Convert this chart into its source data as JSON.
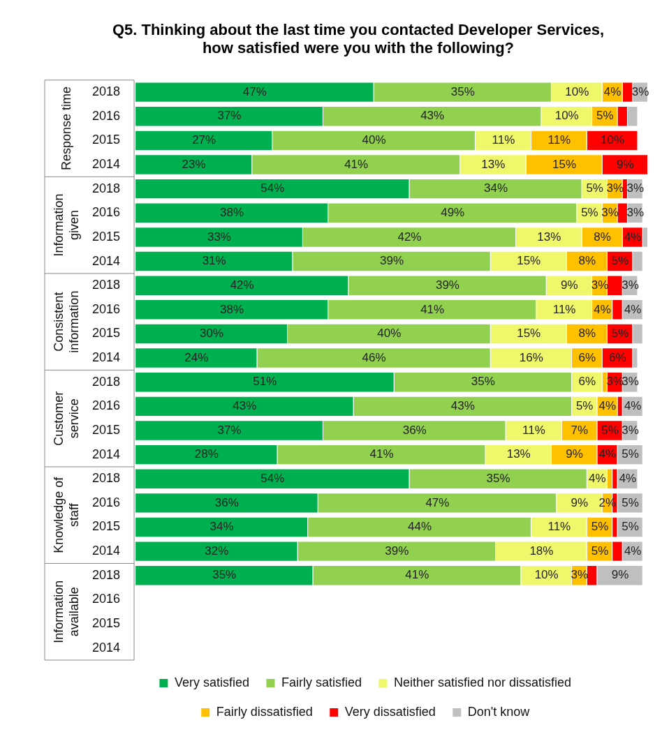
{
  "chart_data": {
    "type": "bar",
    "orientation": "horizontal",
    "stacked": true,
    "legend": "bottom",
    "title": "Q5. Thinking about the last time you contacted Developer Services, how satisfied were you with the following?",
    "categories": [
      "2018",
      "2016",
      "2015",
      "2014",
      "2018",
      "2016",
      "2015",
      "2014",
      "2018",
      "2016",
      "2015",
      "2014",
      "2018",
      "2016",
      "2015",
      "2014",
      "2018",
      "2016",
      "2015",
      "2014",
      "2018",
      "2016",
      "2015",
      "2014"
    ],
    "annotations": [
      "Response time",
      "Information given",
      "Consistent information",
      "Customer service",
      "Knowledge of staff",
      "Information available"
    ],
    "series": [
      {
        "name": "Very satisfied",
        "color": "#00b050",
        "values": [
          47,
          37,
          27,
          23,
          54,
          38,
          33,
          31,
          42,
          38,
          30,
          24,
          51,
          43,
          37,
          28,
          54,
          36,
          34,
          32,
          35,
          null,
          null,
          null
        ],
        "value_labels": [
          "47%",
          "37%",
          "27%",
          "23%",
          "54%",
          "38%",
          "33%",
          "31%",
          "42%",
          "38%",
          "30%",
          "24%",
          "51%",
          "43%",
          "37%",
          "28%",
          "54%",
          "36%",
          "34%",
          "32%",
          "35%",
          null,
          null,
          null
        ]
      },
      {
        "name": "Fairly satisfied",
        "color": "#92d050",
        "values": [
          35,
          43,
          40,
          41,
          34,
          49,
          42,
          39,
          39,
          41,
          40,
          46,
          35,
          43,
          36,
          41,
          35,
          47,
          44,
          39,
          41,
          null,
          null,
          null
        ],
        "value_labels": [
          "35%",
          "43%",
          "40%",
          "41%",
          "34%",
          "49%",
          "42%",
          "39%",
          "39%",
          "41%",
          "40%",
          "46%",
          "35%",
          "43%",
          "36%",
          "41%",
          "35%",
          "47%",
          "44%",
          "39%",
          "41%",
          null,
          null,
          null
        ]
      },
      {
        "name": "Neither satisfied nor dissatisfied",
        "color": "#eef86a",
        "values": [
          10,
          10,
          11,
          13,
          5,
          5,
          13,
          15,
          9,
          11,
          15,
          16,
          6,
          5,
          11,
          13,
          4,
          9,
          11,
          18,
          10,
          null,
          null,
          null
        ],
        "value_labels": [
          "10%",
          "10%",
          "11%",
          "13%",
          "5%",
          "5%",
          "13%",
          "15%",
          "9%",
          "11%",
          "15%",
          "16%",
          "6%",
          "5%",
          "11%",
          "13%",
          "4%",
          "9%",
          "11%",
          "18%",
          "10%",
          null,
          null,
          null
        ]
      },
      {
        "name": "Fairly dissatisfied",
        "color": "#ffc000",
        "values": [
          4,
          5,
          11,
          15,
          3,
          3,
          8,
          8,
          3,
          4,
          8,
          6,
          1,
          4,
          7,
          9,
          1,
          2,
          5,
          5,
          3,
          null,
          null,
          null
        ],
        "value_labels": [
          "4%",
          "5%",
          "11%",
          "15%",
          "3%",
          "3%",
          "8%",
          "8%",
          "3%",
          "4%",
          "8%",
          "6%",
          null,
          "4%",
          "7%",
          "9%",
          null,
          "2%",
          "5%",
          "5%",
          "3%",
          null,
          null,
          null
        ]
      },
      {
        "name": "Very dissatisfied",
        "color": "#ff0000",
        "values": [
          2,
          2,
          10,
          9,
          1,
          2,
          4,
          5,
          3,
          2,
          5,
          6,
          3,
          1,
          5,
          4,
          1,
          1,
          1,
          2,
          2,
          null,
          null,
          null
        ],
        "value_labels": [
          null,
          null,
          "10%",
          "9%",
          null,
          null,
          "4%",
          "5%",
          null,
          null,
          "5%",
          "6%",
          "3%",
          null,
          "5%",
          "4%",
          null,
          null,
          null,
          null,
          null,
          null,
          null,
          null
        ]
      },
      {
        "name": "Don't know",
        "color": "#bfbfbf",
        "values": [
          3,
          2,
          0,
          0,
          3,
          3,
          1,
          2,
          3,
          4,
          2,
          1,
          3,
          4,
          3,
          5,
          4,
          5,
          5,
          4,
          9,
          null,
          null,
          null
        ],
        "value_labels": [
          "3%",
          null,
          null,
          null,
          "3%",
          "3%",
          null,
          null,
          "3%",
          "4%",
          null,
          null,
          "3%",
          "4%",
          "3%",
          "5%",
          "4%",
          "5%",
          "5%",
          "4%",
          "9%",
          null,
          null,
          null
        ]
      }
    ]
  }
}
